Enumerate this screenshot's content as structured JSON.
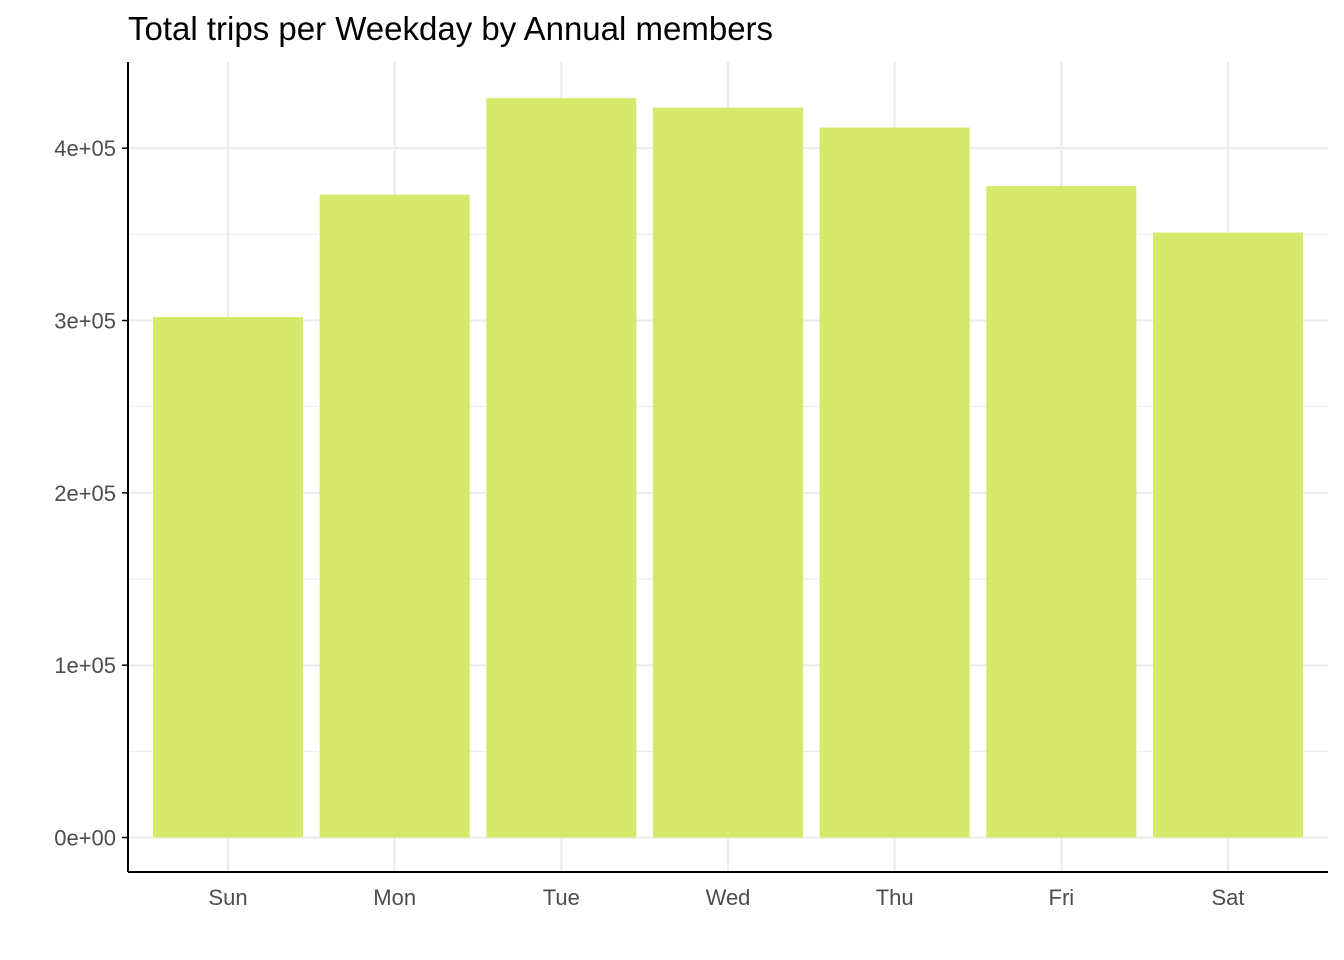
{
  "chart_data": {
    "type": "bar",
    "title": "Total trips per Weekday by Annual members",
    "xlabel": "",
    "ylabel": "",
    "categories": [
      "Sun",
      "Mon",
      "Tue",
      "Wed",
      "Thu",
      "Fri",
      "Sat"
    ],
    "values": [
      302000,
      373000,
      429000,
      423500,
      412000,
      378000,
      351000
    ],
    "ylim": [
      -20000,
      450000
    ],
    "yticks": [
      0,
      100000,
      200000,
      300000,
      400000
    ],
    "ytick_labels": [
      "0e+00",
      "1e+05",
      "2e+05",
      "3e+05",
      "4e+05"
    ],
    "grid": true,
    "legend": "none",
    "bar_color": "#d6e96b",
    "grid_color": "#ebebeb",
    "axis_color": "#000000"
  }
}
